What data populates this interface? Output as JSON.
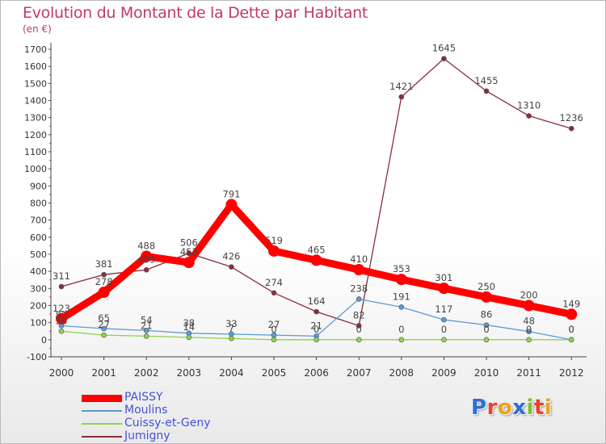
{
  "title": "Evolution du Montant de la Dette par Habitant",
  "subtitle": "(en €)",
  "logo": {
    "text": "Proxiti",
    "letters": [
      {
        "ch": "P",
        "color": "#2c6fd6"
      },
      {
        "ch": "r",
        "color": "#e7402d"
      },
      {
        "ch": "o",
        "color": "#f0a21c"
      },
      {
        "ch": "x",
        "color": "#2c6fd6"
      },
      {
        "ch": "i",
        "color": "#7fbf2a"
      },
      {
        "ch": "t",
        "color": "#e7402d"
      },
      {
        "ch": "i",
        "color": "#f0a21c"
      }
    ]
  },
  "chart_data": {
    "type": "line",
    "title": "Evolution du Montant de la Dette par Habitant",
    "ylabel": "(en €)",
    "xlabel": "",
    "x": [
      "2000",
      "2001",
      "2002",
      "2003",
      "2004",
      "2005",
      "2006",
      "2007",
      "2008",
      "2009",
      "2010",
      "2011",
      "2012"
    ],
    "ylim": [
      -100,
      1700
    ],
    "yticks": [
      -100,
      0,
      100,
      200,
      300,
      400,
      500,
      600,
      700,
      800,
      900,
      1000,
      1100,
      1200,
      1300,
      1400,
      1500,
      1600,
      1700
    ],
    "grid": false,
    "legend_position": "bottom-left",
    "series": [
      {
        "name": "PAISSY",
        "color": "#ff0000",
        "width": "bold",
        "values": [
          123,
          278,
          488,
          452,
          791,
          519,
          465,
          410,
          353,
          301,
          250,
          200,
          149
        ],
        "labels": [
          "123",
          "278",
          "488",
          "452",
          "791",
          "519",
          "465",
          "410",
          "353",
          "301",
          "250",
          "200",
          "149"
        ]
      },
      {
        "name": "Moulins",
        "color": "#5b9bd5",
        "width": "thin",
        "values": [
          82,
          65,
          54,
          38,
          33,
          27,
          21,
          238,
          191,
          117,
          86,
          48,
          0
        ],
        "labels": [
          "82",
          "65",
          "54",
          "38",
          "33",
          "27",
          "21",
          "238",
          "191",
          "117",
          "86",
          "48",
          "0"
        ]
      },
      {
        "name": "Cuissy-et-Geny",
        "color": "#8fd14f",
        "width": "thin",
        "values": [
          50,
          27,
          21,
          14,
          7,
          0,
          0,
          0,
          0,
          0,
          0,
          0,
          0
        ],
        "labels": [
          "50",
          "27",
          "21",
          "14",
          "7",
          "0",
          "0",
          "0",
          "0",
          "0",
          "0",
          "0",
          "0"
        ]
      },
      {
        "name": "Jumigny",
        "color": "#8b2c3a",
        "width": "thin",
        "values": [
          311,
          381,
          409,
          506,
          426,
          274,
          164,
          82,
          1421,
          1645,
          1455,
          1310,
          1236
        ],
        "labels": [
          "311",
          "381",
          "409",
          "506",
          "426",
          "274",
          "164",
          "82",
          "1421",
          "1645",
          "1455",
          "1310",
          "1236"
        ]
      }
    ]
  }
}
